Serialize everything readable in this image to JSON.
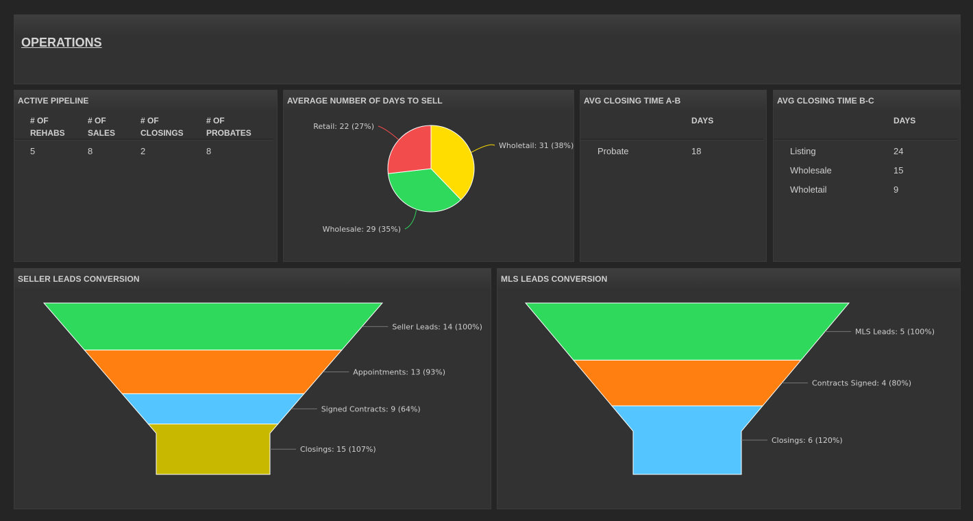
{
  "header": {
    "title": "OPERATIONS"
  },
  "active_pipeline": {
    "title": "ACTIVE PIPELINE",
    "columns": [
      [
        "# OF",
        "REHABS"
      ],
      [
        "# OF",
        "SALES"
      ],
      [
        "# OF",
        "CLOSINGS"
      ],
      [
        "# OF",
        "PROBATES"
      ]
    ],
    "values": [
      "5",
      "8",
      "2",
      "8"
    ]
  },
  "avg_days": {
    "title": "AVERAGE NUMBER OF DAYS TO SELL"
  },
  "closing_ab": {
    "title": "AVG CLOSING TIME A-B",
    "column": "DAYS",
    "rows": [
      {
        "label": "Probate",
        "value": "18"
      }
    ]
  },
  "closing_bc": {
    "title": "AVG CLOSING TIME B-C",
    "column": "DAYS",
    "rows": [
      {
        "label": "Listing",
        "value": "24"
      },
      {
        "label": "Wholesale",
        "value": "15"
      },
      {
        "label": "Wholetail",
        "value": "9"
      }
    ]
  },
  "seller_funnel": {
    "title": "SELLER LEADS CONVERSION"
  },
  "mls_funnel": {
    "title": "MLS LEADS CONVERSION"
  },
  "chart_data": [
    {
      "type": "pie",
      "categories": [
        "Wholetail",
        "Wholesale",
        "Retail"
      ],
      "values": [
        31,
        29,
        22
      ],
      "labels": [
        "Wholetail: 31 (38%)",
        "Wholesale: 29 (35%)",
        "Retail: 22 (27%)"
      ],
      "colors": [
        "#ffdd00",
        "#2fd95c",
        "#f24c4c"
      ]
    },
    {
      "type": "funnel",
      "categories": [
        "Seller Leads",
        "Appointments",
        "Signed Contracts",
        "Closings"
      ],
      "values": [
        14,
        13,
        9,
        15
      ],
      "labels": [
        "Seller Leads: 14 (100%)",
        "Appointments: 13 (93%)",
        "Signed Contracts: 9 (64%)",
        "Closings: 15 (107%)"
      ],
      "colors": [
        "#2fd95c",
        "#ff8011",
        "#55c5ff",
        "#c8b900"
      ]
    },
    {
      "type": "funnel",
      "categories": [
        "MLS Leads",
        "Contracts Signed",
        "Closings"
      ],
      "values": [
        5,
        4,
        6
      ],
      "labels": [
        "MLS Leads: 5 (100%)",
        "Contracts Signed: 4 (80%)",
        "Closings: 6 (120%)"
      ],
      "colors": [
        "#2fd95c",
        "#ff8011",
        "#55c5ff"
      ]
    }
  ]
}
